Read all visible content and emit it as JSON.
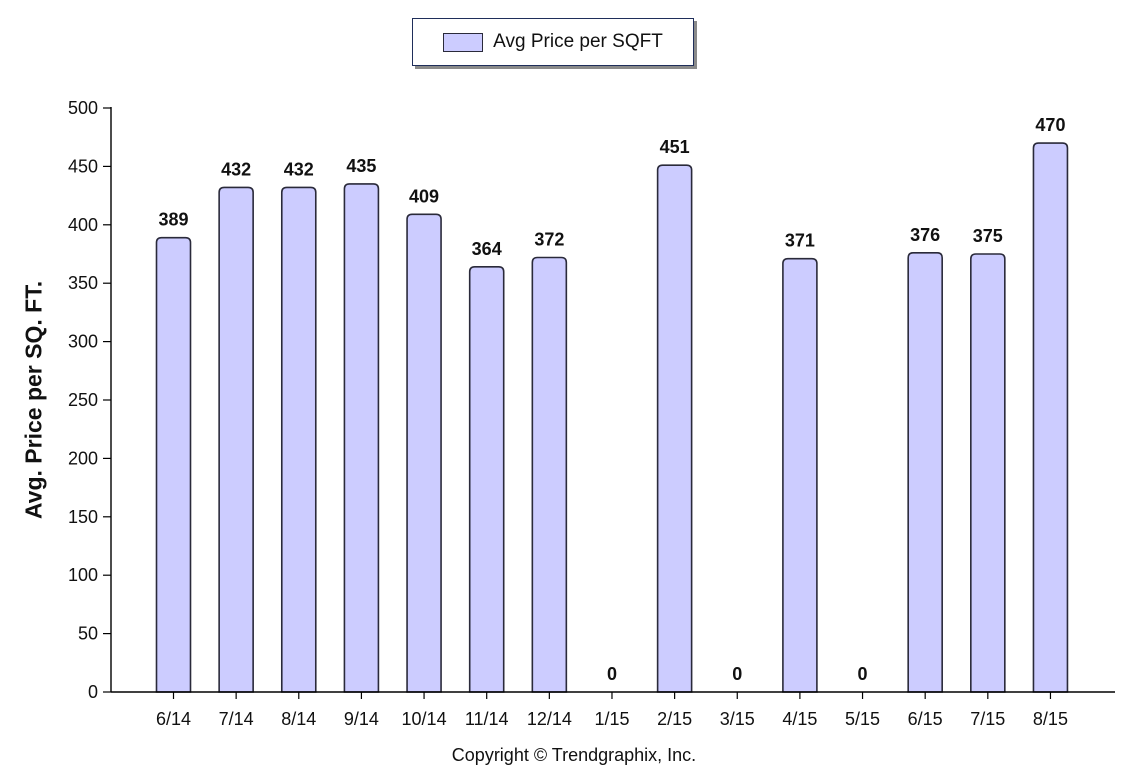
{
  "chart_data": {
    "type": "bar",
    "categories": [
      "6/14",
      "7/14",
      "8/14",
      "9/14",
      "10/14",
      "11/14",
      "12/14",
      "1/15",
      "2/15",
      "3/15",
      "4/15",
      "5/15",
      "6/15",
      "7/15",
      "8/15"
    ],
    "series": [
      {
        "name": "Avg Price per SQFT",
        "values": [
          389,
          432,
          432,
          435,
          409,
          364,
          372,
          0,
          451,
          0,
          371,
          0,
          376,
          375,
          470
        ]
      }
    ],
    "data_labels": [
      "389",
      "432",
      "432",
      "435",
      "409",
      "364",
      "372",
      "0",
      "451",
      "0",
      "371",
      "0",
      "376",
      "375",
      "470"
    ],
    "title": "",
    "xlabel": "",
    "ylabel": "Avg. Price per SQ. FT.",
    "ylim": [
      0,
      500
    ],
    "yticks": [
      0,
      50,
      100,
      150,
      200,
      250,
      300,
      350,
      400,
      450,
      500
    ],
    "ytick_labels": [
      "0",
      "50",
      "100",
      "150",
      "200",
      "250",
      "300",
      "350",
      "400",
      "450",
      "500"
    ],
    "grid": false,
    "legend": {
      "position": "top-center",
      "entries": [
        "Avg Price per SQFT"
      ]
    },
    "colors": {
      "bar_fill": "#ccccff",
      "bar_stroke": "#2a2a3a",
      "axis": "#000000"
    }
  },
  "footer": {
    "copyright": "Copyright © Trendgraphix, Inc."
  }
}
